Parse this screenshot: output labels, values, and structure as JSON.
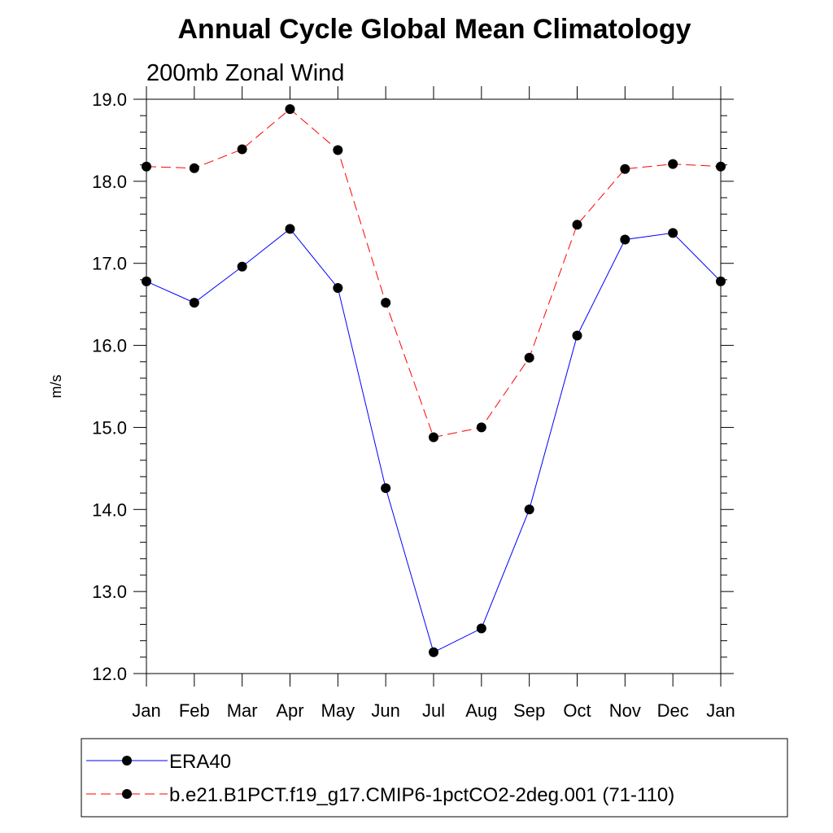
{
  "chart_data": {
    "type": "line",
    "title": "Annual Cycle Global Mean Climatology",
    "subtitle": "200mb Zonal Wind",
    "xlabel": "",
    "ylabel": "m/s",
    "categories": [
      "Jan",
      "Feb",
      "Mar",
      "Apr",
      "May",
      "Jun",
      "Jul",
      "Aug",
      "Sep",
      "Oct",
      "Nov",
      "Dec",
      "Jan"
    ],
    "ylim": [
      12.0,
      19.0
    ],
    "yticks": [
      "12.0",
      "13.0",
      "14.0",
      "15.0",
      "16.0",
      "17.0",
      "18.0",
      "19.0"
    ],
    "grid": false,
    "legend_position": "bottom",
    "series": [
      {
        "name": "ERA40",
        "color": "#0000ff",
        "line_style": "solid",
        "marker": "filled-circle",
        "values": [
          16.78,
          16.52,
          16.96,
          17.42,
          16.7,
          14.26,
          12.26,
          12.55,
          14.0,
          16.12,
          17.29,
          17.37,
          16.78
        ]
      },
      {
        "name": "b.e21.B1PCT.f19_g17.CMIP6-1pctCO2-2deg.001 (71-110)",
        "color": "#ff0000",
        "line_style": "dashed",
        "marker": "filled-circle",
        "values": [
          18.18,
          18.16,
          18.39,
          18.88,
          18.38,
          16.52,
          14.88,
          15.0,
          15.85,
          17.47,
          18.15,
          18.21,
          18.18
        ]
      }
    ]
  }
}
